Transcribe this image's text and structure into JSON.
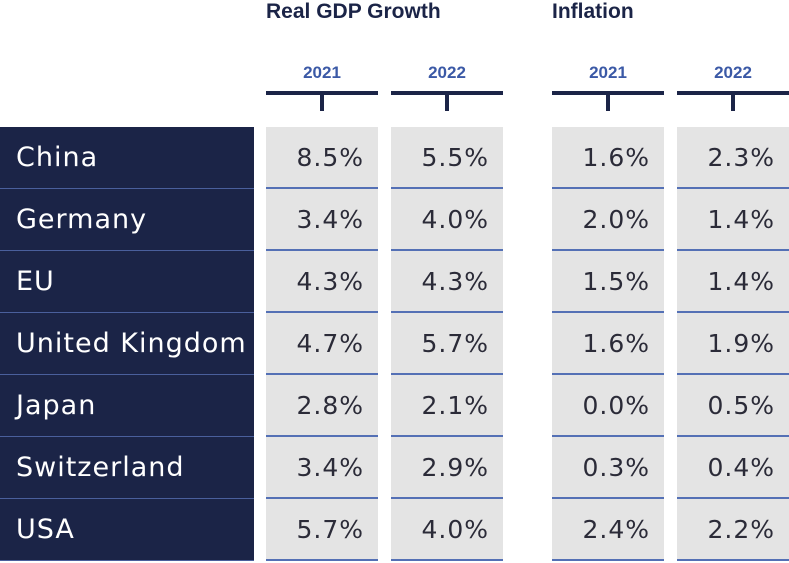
{
  "chart_data": {
    "type": "table",
    "groups": [
      {
        "title": "Real GDP Growth",
        "years": [
          "2021",
          "2022"
        ]
      },
      {
        "title": "Inflation",
        "years": [
          "2021",
          "2022"
        ]
      }
    ],
    "rows": [
      {
        "country": "China",
        "values": [
          "8.5%",
          "5.5%",
          "1.6%",
          "2.3%"
        ]
      },
      {
        "country": "Germany",
        "values": [
          "3.4%",
          "4.0%",
          "2.0%",
          "1.4%"
        ]
      },
      {
        "country": "EU",
        "values": [
          "4.3%",
          "4.3%",
          "1.5%",
          "1.4%"
        ]
      },
      {
        "country": "United Kingdom",
        "values": [
          "4.7%",
          "5.7%",
          "1.6%",
          "1.9%"
        ]
      },
      {
        "country": "Japan",
        "values": [
          "2.8%",
          "2.1%",
          "0.0%",
          "0.5%"
        ]
      },
      {
        "country": "Switzerland",
        "values": [
          "3.4%",
          "2.9%",
          "0.3%",
          "0.4%"
        ]
      },
      {
        "country": "USA",
        "values": [
          "5.7%",
          "4.0%",
          "2.4%",
          "2.2%"
        ]
      }
    ]
  },
  "colors": {
    "navy": "#1b2447",
    "year_blue": "#3b59a6",
    "cell_grey": "#e4e4e4",
    "rule_blue": "#5470b5"
  }
}
